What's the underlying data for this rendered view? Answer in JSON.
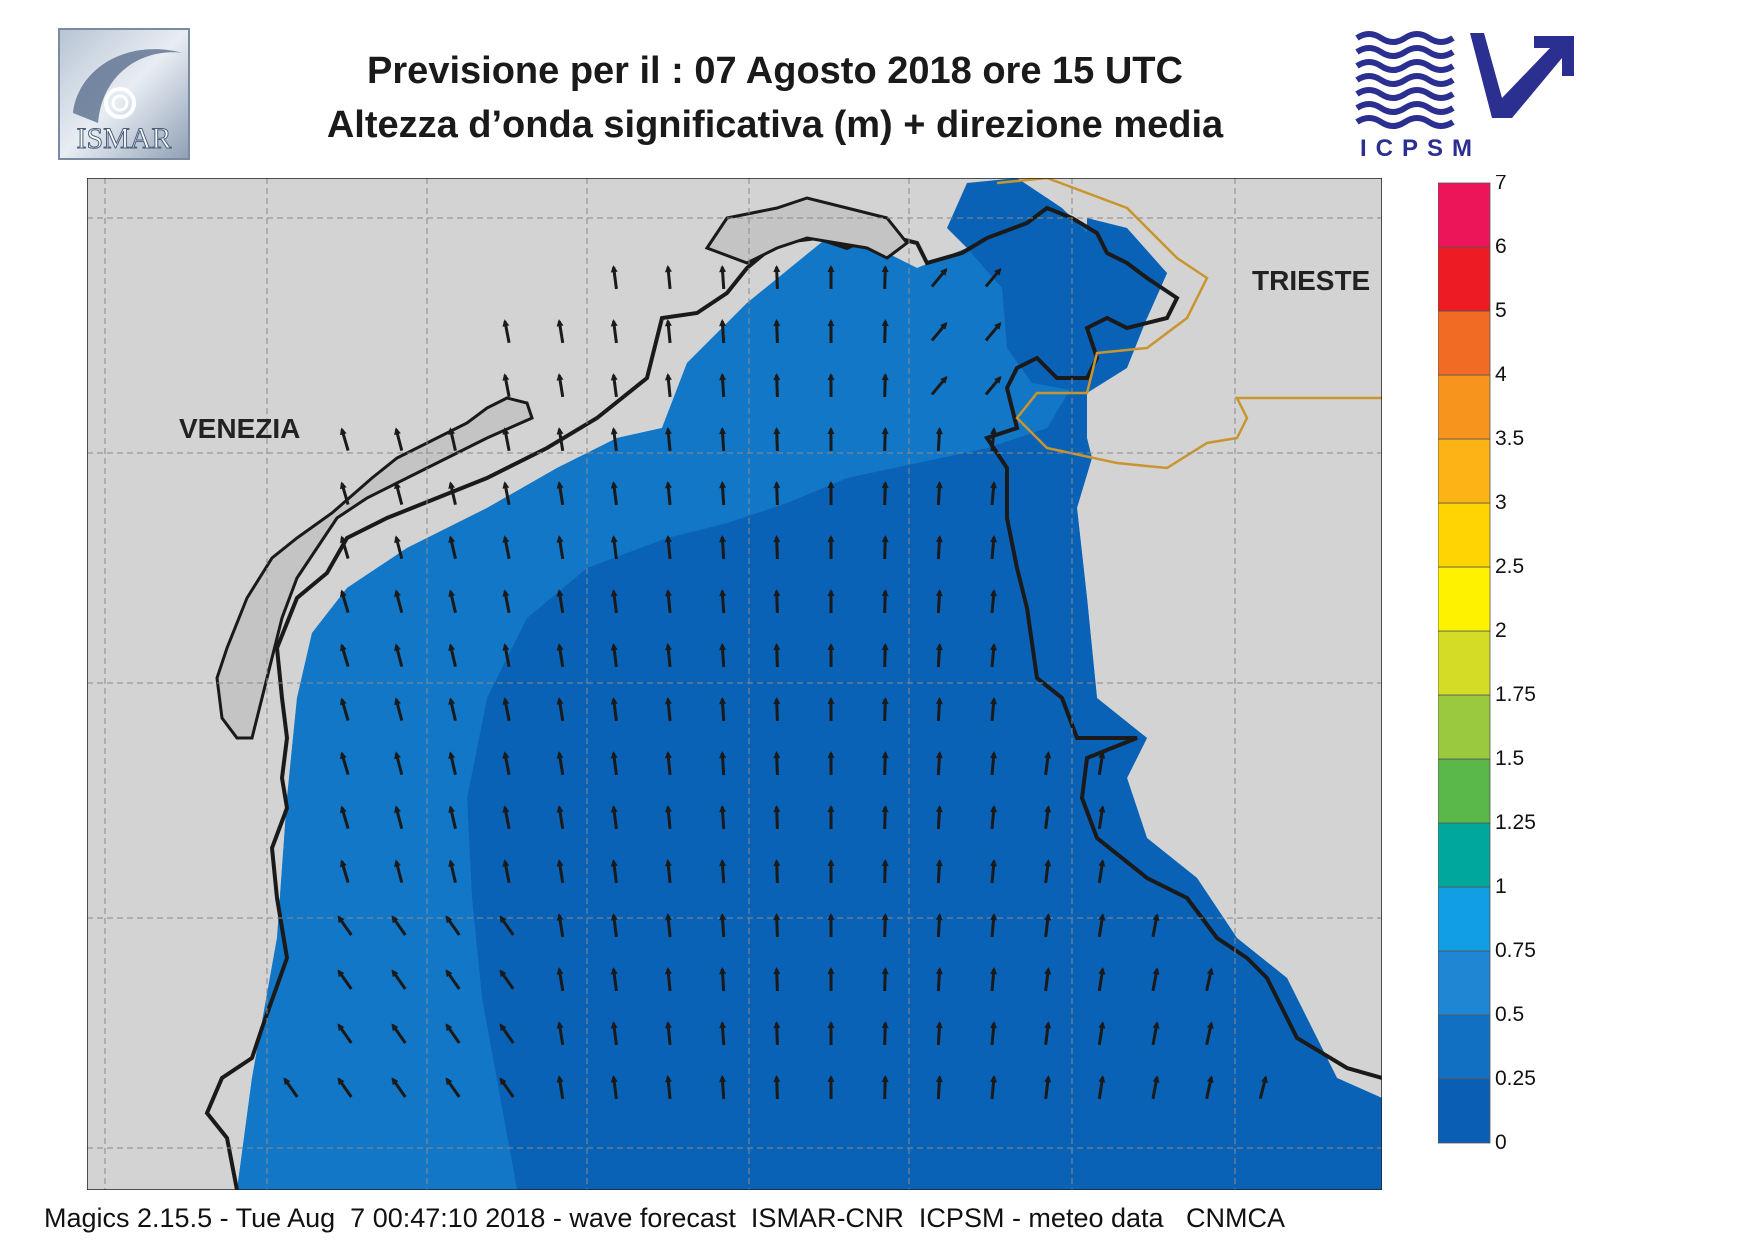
{
  "header": {
    "title_line1": "Previsione per il  :  07   Agosto  2018   ore 15 UTC",
    "title_line2": "Altezza d’onda significativa (m) + direzione media"
  },
  "logos": {
    "left": {
      "name": "ismar-logo",
      "text": "ISMAR"
    },
    "right": {
      "name": "icpsm-logo",
      "text": "ICPSM"
    }
  },
  "map": {
    "places": [
      {
        "name": "venezia",
        "label": "VENEZIA"
      },
      {
        "name": "trieste",
        "label": "TRIESTE"
      }
    ],
    "colors": {
      "land": "#d3d3d3",
      "coast": "#1a1a1a",
      "border": "#c8952e",
      "grid": "#8a8a8a",
      "arrow": "#1a1a1a"
    },
    "wave_height_zones": [
      {
        "range": "0-0.25",
        "color": "#0a62b6"
      },
      {
        "range": "0.25-0.5",
        "color": "#1177c6"
      },
      {
        "range": "0.5-0.75",
        "color": "#1d8ad5"
      }
    ],
    "arrow_direction": "northwest-to-north"
  },
  "legend": {
    "bins": [
      {
        "label": "0",
        "color": "#0a5fb4"
      },
      {
        "label": "0.25",
        "color": "#1270c3"
      },
      {
        "label": "0.5",
        "color": "#1e86d2"
      },
      {
        "label": "0.75",
        "color": "#129ee3"
      },
      {
        "label": "1",
        "color": "#00a89c"
      },
      {
        "label": "1.25",
        "color": "#5ab84a"
      },
      {
        "label": "1.5",
        "color": "#9ac83e"
      },
      {
        "label": "1.75",
        "color": "#d5dc26"
      },
      {
        "label": "2",
        "color": "#fff200"
      },
      {
        "label": "2.5",
        "color": "#ffd400"
      },
      {
        "label": "3",
        "color": "#fcb316"
      },
      {
        "label": "3.5",
        "color": "#f7941d"
      },
      {
        "label": "4",
        "color": "#f26b22"
      },
      {
        "label": "5",
        "color": "#ed1c24"
      },
      {
        "label": "6",
        "color": "#ec1559"
      }
    ],
    "top_label": "7"
  },
  "footer": {
    "text": "Magics 2.15.5 - Tue Aug  7 00:47:10 2018 - wave forecast  ISMAR-CNR  ICPSM - meteo data   CNMCA"
  }
}
